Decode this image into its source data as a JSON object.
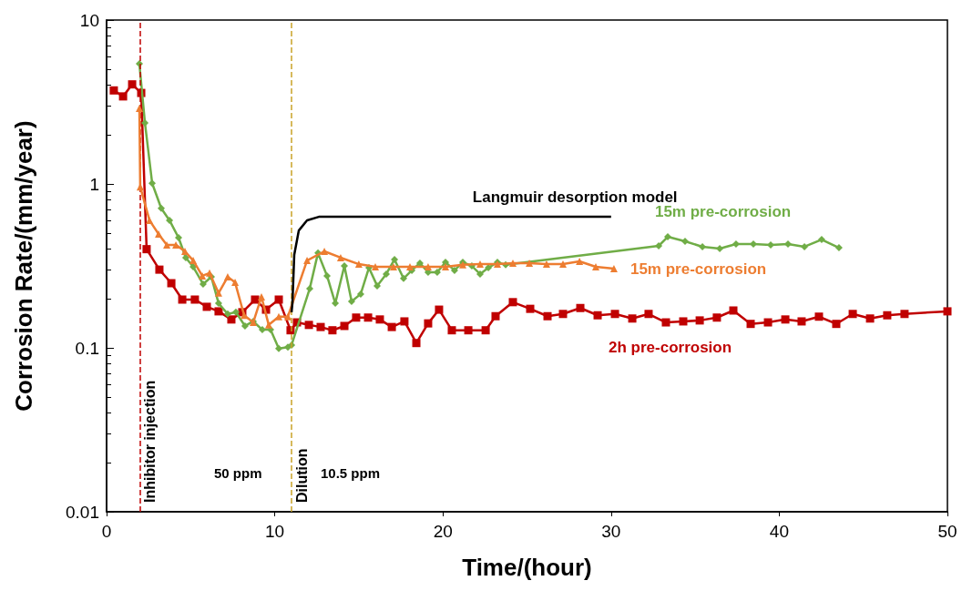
{
  "chart_data": {
    "type": "line",
    "xlabel": "Time/(hour)",
    "ylabel": "Corrosion Rate/(mm/year)",
    "log": "y",
    "xlim": [
      0,
      50
    ],
    "xticks": [
      0,
      10,
      20,
      30,
      40,
      50
    ],
    "ylim": [
      0.01,
      10
    ],
    "yticks": [
      0.01,
      0.1,
      1,
      10
    ],
    "grid": false,
    "legend": false,
    "series": [
      {
        "name": "2h pre-corrosion",
        "color": "#c00000",
        "marker": "square",
        "x": [
          0.43,
          0.98,
          1.52,
          2.06,
          2.38,
          3.14,
          3.85,
          4.5,
          5.25,
          5.96,
          6.66,
          7.42,
          8.07,
          8.83,
          9.48,
          10.24,
          10.94,
          11.32,
          12.03,
          12.73,
          13.43,
          14.14,
          14.84,
          15.55,
          16.25,
          16.96,
          17.71,
          18.42,
          19.12,
          19.77,
          20.53,
          21.51,
          22.54,
          23.13,
          24.16,
          25.19,
          26.22,
          27.14,
          28.17,
          29.2,
          30.23,
          31.26,
          32.23,
          33.26,
          34.29,
          35.27,
          36.29,
          37.27,
          38.3,
          39.33,
          40.36,
          41.33,
          42.36,
          43.39,
          44.37,
          45.4,
          46.42,
          47.45,
          50
        ],
        "values": [
          3.72,
          3.42,
          4.05,
          3.59,
          0.4,
          0.3,
          0.248,
          0.197,
          0.197,
          0.178,
          0.167,
          0.149,
          0.165,
          0.197,
          0.171,
          0.197,
          0.128,
          0.143,
          0.138,
          0.134,
          0.128,
          0.136,
          0.153,
          0.153,
          0.149,
          0.134,
          0.145,
          0.107,
          0.141,
          0.171,
          0.128,
          0.128,
          0.128,
          0.156,
          0.19,
          0.173,
          0.156,
          0.161,
          0.175,
          0.158,
          0.161,
          0.151,
          0.161,
          0.143,
          0.145,
          0.147,
          0.153,
          0.169,
          0.14,
          0.143,
          0.149,
          0.145,
          0.155,
          0.14,
          0.161,
          0.151,
          0.158,
          0.161,
          0.167
        ]
      },
      {
        "name": "15m pre-corrosion",
        "color": "#70ad47",
        "marker": "diamond",
        "x": [
          1.95,
          2.28,
          2.71,
          3.25,
          3.74,
          4.28,
          4.71,
          5.15,
          5.74,
          6.23,
          6.66,
          7.2,
          7.69,
          8.23,
          8.72,
          9.26,
          9.75,
          10.24,
          10.78,
          11.0,
          12.08,
          12.57,
          13.11,
          13.6,
          14.14,
          14.57,
          15.11,
          15.6,
          16.09,
          16.63,
          17.12,
          17.66,
          18.15,
          18.63,
          19.12,
          19.66,
          20.15,
          20.69,
          21.18,
          21.72,
          22.21,
          22.7,
          23.24,
          23.73,
          32.83,
          33.37,
          34.4,
          35.43,
          36.46,
          37.43,
          38.46,
          39.49,
          40.52,
          41.5,
          42.52,
          43.55
        ],
        "values": [
          5.41,
          2.36,
          1.01,
          0.71,
          0.6,
          0.47,
          0.355,
          0.312,
          0.245,
          0.271,
          0.187,
          0.161,
          0.165,
          0.136,
          0.145,
          0.129,
          0.129,
          0.099,
          0.101,
          0.104,
          0.23,
          0.379,
          0.275,
          0.187,
          0.316,
          0.192,
          0.213,
          0.308,
          0.239,
          0.282,
          0.346,
          0.265,
          0.297,
          0.329,
          0.289,
          0.289,
          0.333,
          0.297,
          0.333,
          0.316,
          0.282,
          0.308,
          0.333,
          0.321,
          0.419,
          0.476,
          0.447,
          0.414,
          0.403,
          0.43,
          0.43,
          0.425,
          0.43,
          0.414,
          0.458,
          0.408
        ]
      },
      {
        "name": "15m pre-corrosion",
        "color": "#ed7d31",
        "marker": "triangle",
        "x": [
          1.95,
          2.0,
          2.55,
          3.09,
          3.58,
          4.12,
          4.66,
          5.15,
          5.69,
          6.12,
          6.66,
          7.2,
          7.64,
          8.18,
          8.72,
          9.21,
          9.64,
          10.24,
          10.78,
          11.92,
          12.95,
          13.92,
          15.0,
          15.98,
          17.06,
          18.04,
          19.12,
          20.15,
          21.18,
          22.21,
          23.24,
          24.16,
          25.14,
          26.16,
          27.14,
          28.12,
          29.09,
          30.17
        ],
        "values": [
          2.89,
          0.96,
          0.6,
          0.495,
          0.425,
          0.425,
          0.388,
          0.341,
          0.275,
          0.286,
          0.216,
          0.271,
          0.251,
          0.158,
          0.143,
          0.205,
          0.138,
          0.155,
          0.155,
          0.341,
          0.388,
          0.355,
          0.324,
          0.312,
          0.312,
          0.312,
          0.312,
          0.312,
          0.321,
          0.324,
          0.324,
          0.329,
          0.329,
          0.324,
          0.324,
          0.337,
          0.312,
          0.304
        ]
      },
      {
        "name": "Langmuir desorption model",
        "color": "#000000",
        "marker": "none",
        "x": [
          11.0,
          11.05,
          11.16,
          11.43,
          11.92,
          12.62,
          14.95,
          30.0
        ],
        "values": [
          0.165,
          0.187,
          0.37,
          0.52,
          0.6,
          0.63,
          0.63,
          0.63
        ]
      }
    ],
    "ref_lines": [
      {
        "axis": "x",
        "value": 2,
        "label": "Inhibitor injection",
        "color": "#c00000",
        "line_style": "dashed"
      },
      {
        "axis": "x",
        "value": 11,
        "label": "Dilution",
        "color": "#c9a227",
        "line_style": "dashed"
      }
    ],
    "annotations": [
      "50 ppm",
      "10.5 ppm"
    ]
  }
}
